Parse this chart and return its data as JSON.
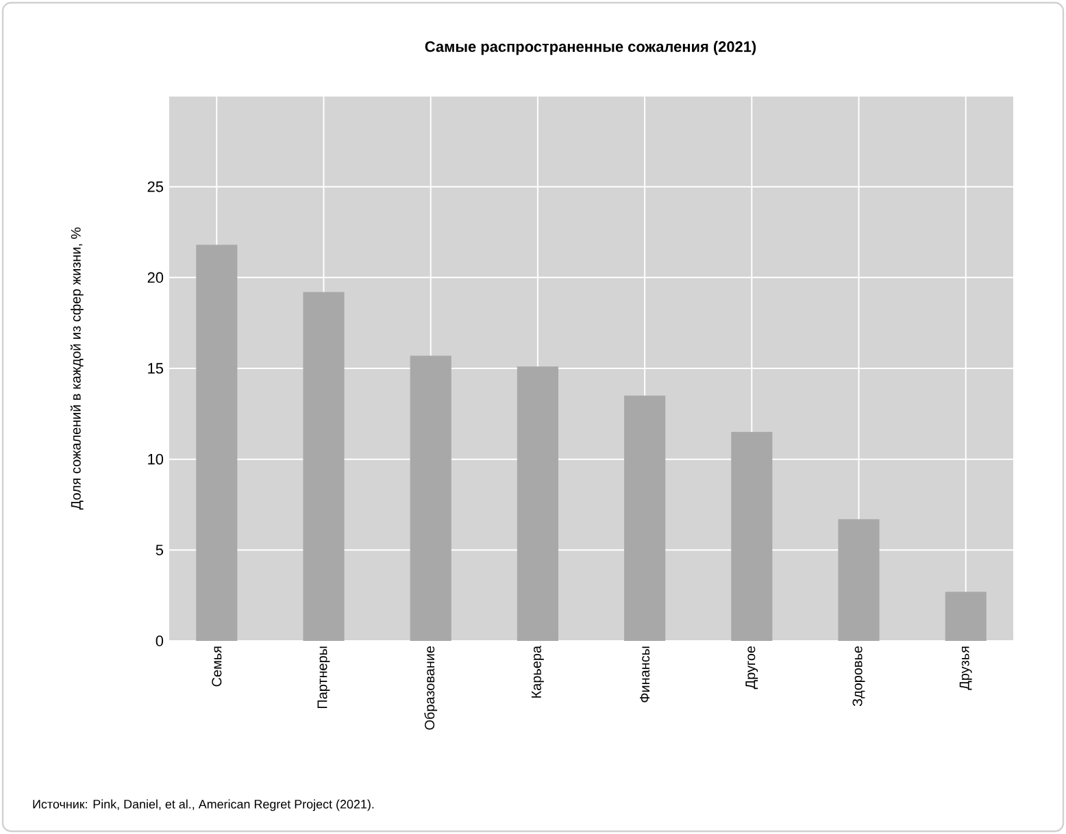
{
  "chart_data": {
    "type": "bar",
    "title": "Самые распространенные сожаления (2021)",
    "ylabel": "Доля сожалений в каждой из сфер жизни, %",
    "categories": [
      "Семья",
      "Партнеры",
      "Образование",
      "Карьера",
      "Финансы",
      "Другое",
      "Здоровье",
      "Друзья"
    ],
    "values": [
      21.8,
      19.2,
      15.7,
      15.1,
      13.5,
      11.5,
      6.7,
      2.7
    ],
    "color": "#a8a8a8",
    "ylim": [
      0,
      30
    ],
    "yticks": [
      0,
      5,
      10,
      15,
      20,
      25
    ],
    "grid": true,
    "annotations": [
      "Источник: Pink, Daniel, et al., American Regret Project (2021)."
    ]
  }
}
